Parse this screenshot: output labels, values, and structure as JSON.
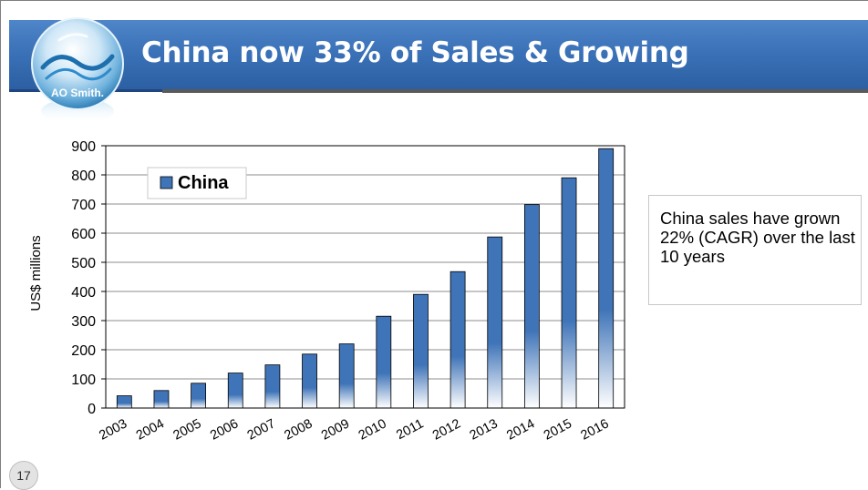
{
  "slide": {
    "title": "China now 33% of Sales & Growing",
    "logo_text": "AO Smith.",
    "callout_text": "China sales have grown 22% (CAGR) over the last 10 years",
    "page_number": "17",
    "colors": {
      "banner": "#3b72b8",
      "bar": "#3f74b8",
      "bar_fade": "#ffffff"
    }
  },
  "chart_data": {
    "type": "bar",
    "title": "",
    "xlabel": "",
    "ylabel": "US$ millions",
    "categories": [
      "2003",
      "2004",
      "2005",
      "2006",
      "2007",
      "2008",
      "2009",
      "2010",
      "2011",
      "2012",
      "2013",
      "2014",
      "2015",
      "2016"
    ],
    "series": [
      {
        "name": "China",
        "values": [
          42,
          60,
          85,
          120,
          148,
          185,
          220,
          315,
          390,
          468,
          587,
          698,
          790,
          890
        ]
      }
    ],
    "ylim": [
      0,
      900
    ],
    "yticks": [
      "0",
      "100",
      "200",
      "300",
      "400",
      "500",
      "600",
      "700",
      "800",
      "900"
    ],
    "grid": true,
    "legend": "top-left"
  }
}
